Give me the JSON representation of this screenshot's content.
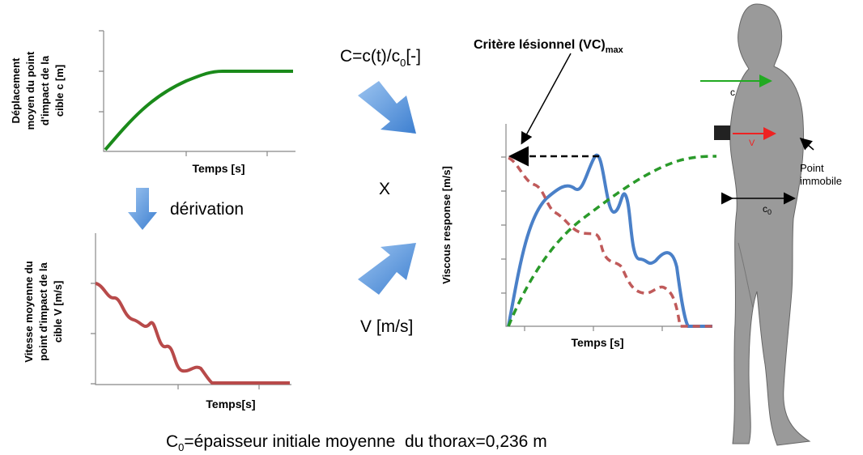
{
  "panel_displacement": {
    "y_label": [
      "Déplacement",
      "moyen du point",
      "d'impact de la",
      "cible c [m]"
    ],
    "x_label": "Temps [s]"
  },
  "derivation_label": "dérivation",
  "panel_velocity": {
    "y_label": [
      "Vitesse moyenne du",
      "point d'impact de la",
      "cible V [m/s]"
    ],
    "x_label": "Temps[s]"
  },
  "formula": {
    "main": "C=c(t)/c",
    "sub": "0",
    "tail": "[-]"
  },
  "operator": "X",
  "velocity_input": "V [m/s]",
  "criterion": {
    "main": "Critère lésionnel (VC)",
    "sub": "max"
  },
  "panel_viscous": {
    "y_label": "Viscous response [m/s]",
    "x_label": "Temps [s]"
  },
  "body": {
    "c_label": "c",
    "v_label": "V",
    "c0_label": {
      "main": "c",
      "sub": "0"
    },
    "point_label": [
      "Point",
      "immobile"
    ]
  },
  "footer": {
    "main": "C",
    "sub": "0",
    "tail": "=épaisseur initiale moyenne  du thorax=0,236 m"
  }
}
